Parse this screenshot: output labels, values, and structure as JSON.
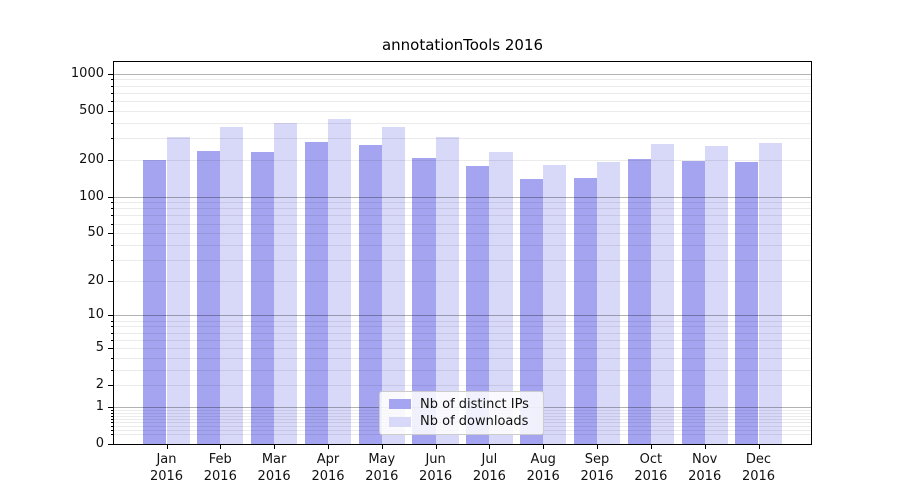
{
  "chart_data": {
    "type": "bar",
    "title": "annotationTools 2016",
    "yscale": "log1p",
    "grid": true,
    "legend_position": "lower center",
    "categories": [
      "Jan",
      "Feb",
      "Mar",
      "Apr",
      "May",
      "Jun",
      "Jul",
      "Aug",
      "Sep",
      "Oct",
      "Nov",
      "Dec"
    ],
    "year_label": "2016",
    "series": [
      {
        "name": "Nb of distinct IPs",
        "color": "#a4a4f1",
        "values": [
          200,
          237,
          231,
          276,
          262,
          207,
          178,
          139,
          141,
          201,
          196,
          191
        ]
      },
      {
        "name": "Nb of downloads",
        "color": "#d8d8f9",
        "values": [
          303,
          372,
          395,
          430,
          370,
          306,
          231,
          182,
          191,
          267,
          257,
          271
        ]
      }
    ],
    "yticks": [
      0,
      1,
      2,
      5,
      10,
      20,
      50,
      100,
      200,
      500,
      1000
    ],
    "ylim": [
      0,
      1240
    ],
    "xlabel": "",
    "ylabel": ""
  }
}
